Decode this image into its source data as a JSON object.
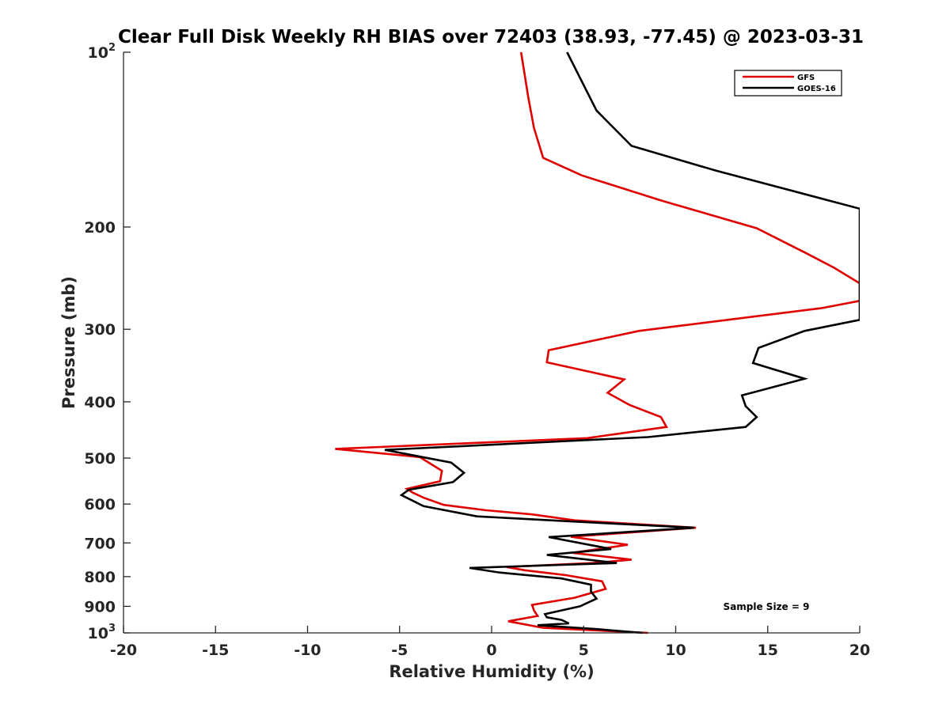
{
  "chart_data": {
    "type": "line",
    "title": "Clear Full Disk Weekly RH BIAS over 72403 (38.93, -77.45) @ 2023-03-31",
    "xlabel": "Relative Humidity (%)",
    "ylabel": "Pressure (mb)",
    "xlim": [
      -20,
      20
    ],
    "ylim": [
      100,
      1000
    ],
    "y_scale": "log",
    "y_reversed": true,
    "grid": false,
    "legend_position": "top-right",
    "x_ticks": [
      "-20",
      "-15",
      "-10",
      "-5",
      "0",
      "5",
      "10",
      "15",
      "20"
    ],
    "y_ticks": [
      {
        "value": 100,
        "label": "10",
        "sup": "2"
      },
      {
        "value": 200,
        "label": "200",
        "sup": ""
      },
      {
        "value": 300,
        "label": "300",
        "sup": ""
      },
      {
        "value": 400,
        "label": "400",
        "sup": ""
      },
      {
        "value": 500,
        "label": "500",
        "sup": ""
      },
      {
        "value": 600,
        "label": "600",
        "sup": ""
      },
      {
        "value": 700,
        "label": "700",
        "sup": ""
      },
      {
        "value": 800,
        "label": "800",
        "sup": ""
      },
      {
        "value": 900,
        "label": "900",
        "sup": ""
      },
      {
        "value": 1000,
        "label": "10",
        "sup": "3"
      }
    ],
    "series": [
      {
        "name": "GFS",
        "color": "#e00000",
        "points": [
          [
            8.5,
            1000
          ],
          [
            2.8,
            980
          ],
          [
            0.9,
            955
          ],
          [
            2.5,
            935
          ],
          [
            2.3,
            915
          ],
          [
            2.2,
            895
          ],
          [
            4.5,
            870
          ],
          [
            6.2,
            840
          ],
          [
            6.0,
            815
          ],
          [
            4.0,
            795
          ],
          [
            1.8,
            780
          ],
          [
            0.8,
            770
          ],
          [
            5.5,
            758
          ],
          [
            7.6,
            748
          ],
          [
            4.4,
            728
          ],
          [
            7.4,
            705
          ],
          [
            4.3,
            683
          ],
          [
            11.1,
            659
          ],
          [
            4.5,
            640
          ],
          [
            2.2,
            625
          ],
          [
            -0.3,
            615
          ],
          [
            -2.6,
            602
          ],
          [
            -3.7,
            585
          ],
          [
            -4.3,
            573
          ],
          [
            -4.6,
            565
          ],
          [
            -2.8,
            548
          ],
          [
            -2.7,
            526
          ],
          [
            -3.9,
            498
          ],
          [
            -8.5,
            482
          ],
          [
            5.2,
            462
          ],
          [
            9.5,
            442
          ],
          [
            9.2,
            425
          ],
          [
            7.5,
            405
          ],
          [
            6.3,
            386
          ],
          [
            7.2,
            366
          ],
          [
            3.0,
            342
          ],
          [
            3.1,
            326
          ],
          [
            8.0,
            302
          ],
          [
            17.9,
            276
          ],
          [
            20.0,
            268
          ],
          [
            20.0,
            250
          ],
          [
            18.6,
            235
          ],
          [
            17.1,
            222
          ],
          [
            14.4,
            201
          ],
          [
            9.2,
            180
          ],
          [
            4.9,
            163
          ],
          [
            2.8,
            152
          ],
          [
            2.3,
            135
          ],
          [
            2.0,
            120
          ],
          [
            1.6,
            100
          ]
        ]
      },
      {
        "name": "GOES-16",
        "color": "#000000",
        "points": [
          [
            8.2,
            1000
          ],
          [
            5.7,
            985
          ],
          [
            2.5,
            970
          ],
          [
            4.2,
            963
          ],
          [
            3.8,
            950
          ],
          [
            3.0,
            940
          ],
          [
            2.9,
            928
          ],
          [
            4.8,
            900
          ],
          [
            5.7,
            873
          ],
          [
            5.4,
            849
          ],
          [
            5.4,
            826
          ],
          [
            3.8,
            806
          ],
          [
            0.4,
            787
          ],
          [
            -1.2,
            773
          ],
          [
            6.8,
            758
          ],
          [
            3.0,
            734
          ],
          [
            6.5,
            717
          ],
          [
            3.1,
            684
          ],
          [
            11.0,
            659
          ],
          [
            4.0,
            642
          ],
          [
            -0.8,
            630
          ],
          [
            -3.7,
            605
          ],
          [
            -4.9,
            579
          ],
          [
            -4.5,
            567
          ],
          [
            -2.1,
            550
          ],
          [
            -1.5,
            530
          ],
          [
            -2.2,
            509
          ],
          [
            -5.8,
            484
          ],
          [
            8.5,
            460
          ],
          [
            13.8,
            442
          ],
          [
            14.4,
            425
          ],
          [
            13.8,
            407
          ],
          [
            13.6,
            390
          ],
          [
            17.0,
            365
          ],
          [
            14.2,
            343
          ],
          [
            14.5,
            323
          ],
          [
            17.0,
            302
          ],
          [
            20.0,
            289
          ],
          [
            20.0,
            186
          ],
          [
            12.2,
            160
          ],
          [
            7.6,
            145
          ],
          [
            5.7,
            126
          ],
          [
            4.1,
            100
          ]
        ]
      }
    ],
    "annotations": [
      "Sample Size = 9"
    ]
  }
}
